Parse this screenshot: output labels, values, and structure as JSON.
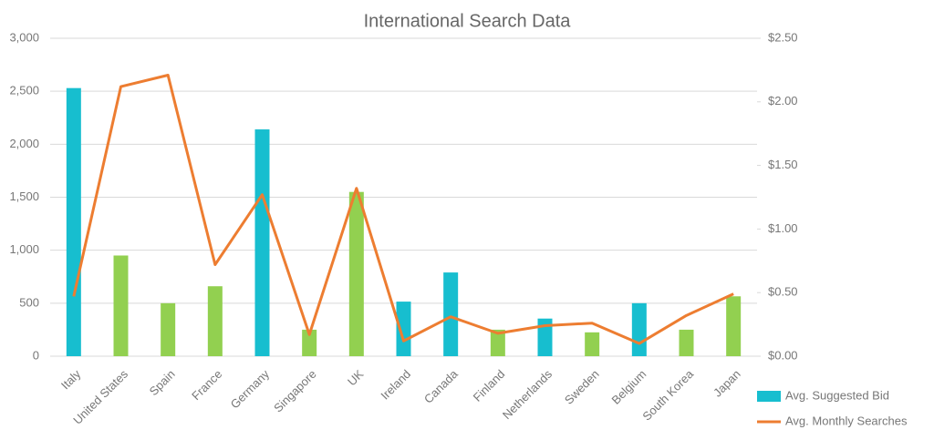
{
  "chart_data": {
    "type": "bar-line",
    "title": "International Search Data",
    "categories": [
      "Italy",
      "United States",
      "Spain",
      "France",
      "Germany",
      "Singapore",
      "UK",
      "Ireland",
      "Canada",
      "Finland",
      "Netherlands",
      "Sweden",
      "Belgium",
      "South Korea",
      "Japan"
    ],
    "series": [
      {
        "name": "Avg. Suggested Bid",
        "type": "bar",
        "color": "#17becf",
        "colors": [
          "#17becf",
          "#92d050",
          "#92d050",
          "#92d050",
          "#17becf",
          "#92d050",
          "#92d050",
          "#17becf",
          "#17becf",
          "#92d050",
          "#17becf",
          "#92d050",
          "#17becf",
          "#92d050",
          "#92d050"
        ],
        "values": [
          2530,
          950,
          500,
          660,
          2140,
          250,
          1550,
          515,
          790,
          250,
          355,
          225,
          500,
          250,
          565
        ]
      },
      {
        "name": "Avg. Monthly Searches",
        "type": "line",
        "axis": "y2",
        "color": "#ed7d31",
        "values": [
          0.47,
          2.12,
          2.21,
          0.72,
          1.27,
          0.17,
          1.32,
          0.12,
          0.31,
          0.18,
          0.24,
          0.26,
          0.1,
          0.32,
          0.49
        ]
      }
    ],
    "ylim": [
      0,
      3000
    ],
    "yticks": [
      0,
      {
        "value": 500,
        "label": "500"
      },
      {
        "value": 1000,
        "label": "1,000"
      },
      {
        "value": 1500,
        "label": "1,500"
      },
      {
        "value": 2000,
        "label": "2,000"
      },
      {
        "value": 2500,
        "label": "2,500"
      },
      {
        "value": 3000,
        "label": "3,000"
      }
    ],
    "y2lim": [
      0,
      2.5
    ],
    "y2ticks": [
      {
        "value": 0,
        "label": "$0.00"
      },
      {
        "value": 0.5,
        "label": "$0.50"
      },
      {
        "value": 1,
        "label": "$1.00"
      },
      {
        "value": 1.5,
        "label": "$1.50"
      },
      {
        "value": 2,
        "label": "$2.00"
      },
      {
        "value": 2.5,
        "label": "$2.50"
      }
    ],
    "grid": true,
    "legend": "bottom-right"
  }
}
